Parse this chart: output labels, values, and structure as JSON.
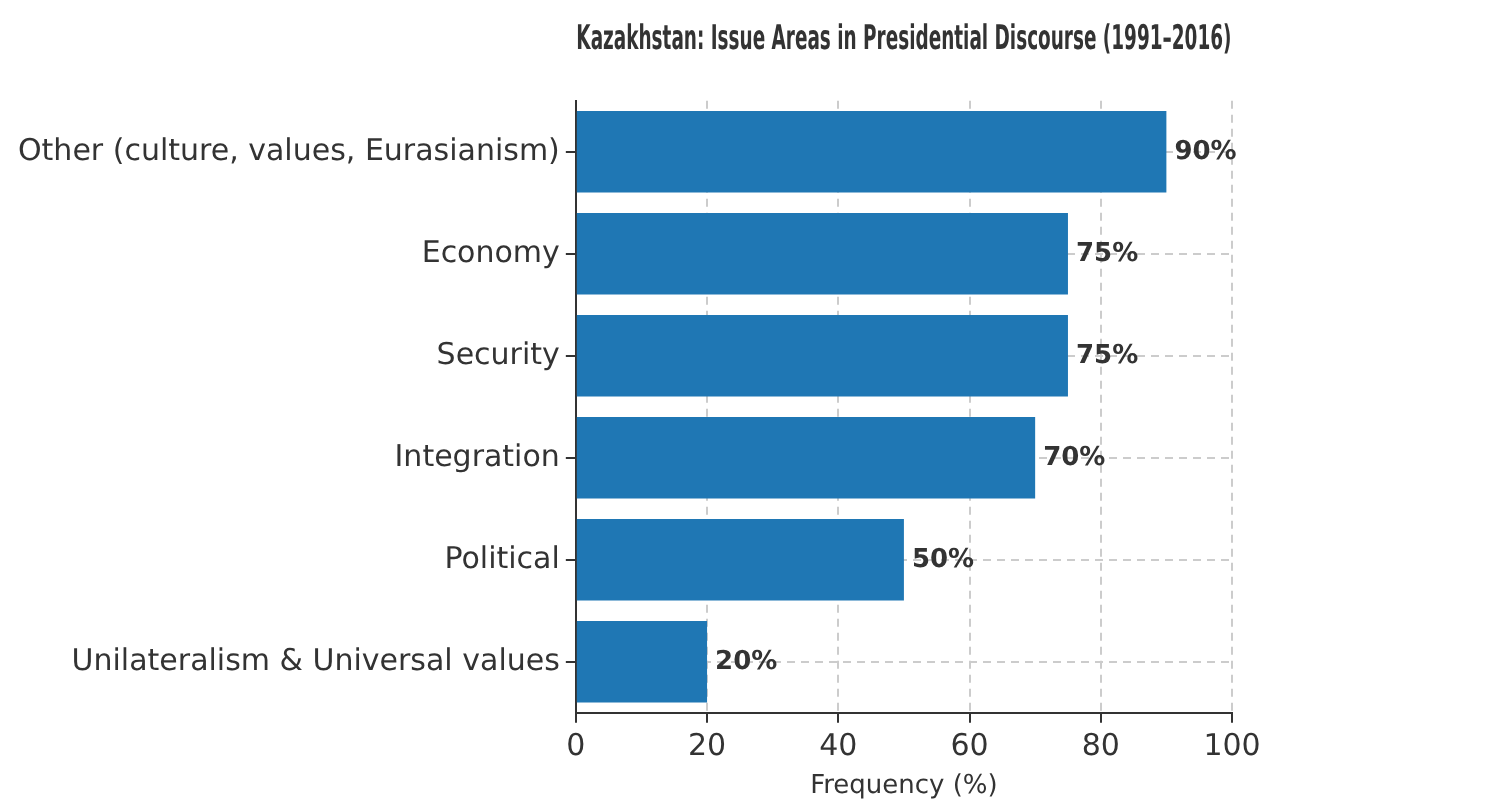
{
  "chart_data": {
    "type": "bar",
    "orientation": "horizontal",
    "title": "Kazakhstan: Issue Areas in Presidential Discourse (1991–2016)",
    "xlabel": "Frequency (%)",
    "categories": [
      "Other (culture, values, Eurasianism)",
      "Economy",
      "Security",
      "Integration",
      "Political",
      "Unilateralism & Universal values"
    ],
    "values": [
      90,
      75,
      75,
      70,
      50,
      20
    ],
    "value_labels": [
      "90%",
      "75%",
      "75%",
      "70%",
      "50%",
      "20%"
    ],
    "color": "#1f77b4",
    "xlim": [
      0,
      100
    ],
    "xticks": [
      0,
      20,
      40,
      60,
      80,
      100
    ],
    "grid": true,
    "legend": false
  }
}
